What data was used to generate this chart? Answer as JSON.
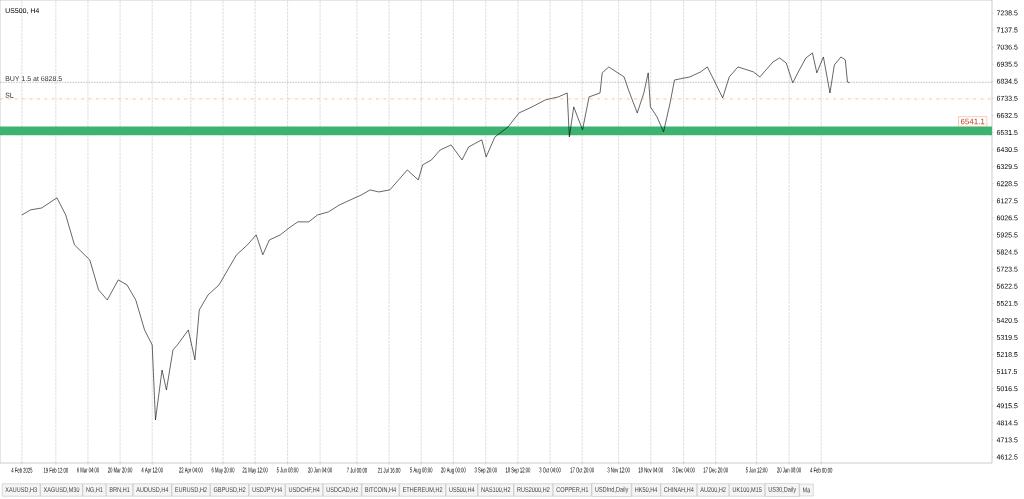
{
  "chart_data": {
    "type": "line",
    "title": "US500, H4",
    "x": [
      "2025-02-04",
      "2025-02-08",
      "2025-02-13",
      "2025-02-20",
      "2025-02-24",
      "2025-02-28",
      "2025-03-07",
      "2025-03-11",
      "2025-03-15",
      "2025-03-20",
      "2025-03-24",
      "2025-03-28",
      "2025-04-01",
      "2025-04-04T12:00",
      "2025-04-06",
      "2025-04-09",
      "2025-04-11",
      "2025-04-14",
      "2025-04-16",
      "2025-04-21",
      "2025-04-24",
      "2025-04-26",
      "2025-04-30",
      "2025-05-05",
      "2025-05-09",
      "2025-05-13",
      "2025-05-18",
      "2025-05-22",
      "2025-05-25",
      "2025-05-28",
      "2025-06-02",
      "2025-06-06",
      "2025-06-10",
      "2025-06-15",
      "2025-06-19",
      "2025-06-24",
      "2025-06-29",
      "2025-07-04",
      "2025-07-09",
      "2025-07-13",
      "2025-07-17",
      "2025-07-22",
      "2025-07-26",
      "2025-07-30",
      "2025-08-04",
      "2025-08-06",
      "2025-08-10",
      "2025-08-14",
      "2025-08-19",
      "2025-08-24",
      "2025-08-27",
      "2025-09-02",
      "2025-09-04",
      "2025-09-08",
      "2025-09-14",
      "2025-09-19",
      "2025-09-25",
      "2025-10-01",
      "2025-10-07",
      "2025-10-11",
      "2025-10-12",
      "2025-10-14",
      "2025-10-18",
      "2025-10-21",
      "2025-10-26",
      "2025-10-27",
      "2025-10-30",
      "2025-11-06",
      "2025-11-08",
      "2025-11-12",
      "2025-11-15",
      "2025-11-17",
      "2025-11-18",
      "2025-11-21",
      "2025-11-24",
      "2025-11-27",
      "2025-11-29",
      "2025-12-06",
      "2025-12-11",
      "2025-12-14",
      "2025-12-17",
      "2025-12-21",
      "2025-12-24",
      "2025-12-28",
      "2026-01-04",
      "2026-01-07",
      "2026-01-13",
      "2026-01-16",
      "2026-01-19",
      "2026-01-22",
      "2026-01-25",
      "2026-01-28",
      "2026-01-31",
      "2026-02-02",
      "2026-02-05",
      "2026-02-08",
      "2026-02-10",
      "2026-02-13",
      "2026-02-15",
      "2026-02-16",
      "2026-02-17"
    ],
    "series": [
      {
        "color": "#000000",
        "values": [
          6044,
          6074,
          6085,
          6145,
          6044,
          5867,
          5778,
          5601,
          5541,
          5660,
          5630,
          5541,
          5364,
          5275,
          4832,
          5127,
          5009,
          5246,
          5275,
          5364,
          5187,
          5482,
          5571,
          5630,
          5719,
          5808,
          5867,
          5926,
          5808,
          5896,
          5926,
          5967,
          6003,
          6003,
          6044,
          6062,
          6103,
          6133,
          6162,
          6192,
          6180,
          6192,
          6251,
          6310,
          6251,
          6340,
          6369,
          6428,
          6458,
          6369,
          6446,
          6488,
          6387,
          6505,
          6564,
          6647,
          6683,
          6724,
          6742,
          6765,
          6505,
          6683,
          6547,
          6742,
          6765,
          6884,
          6919,
          6860,
          6783,
          6647,
          6765,
          6884,
          6683,
          6624,
          6535,
          6706,
          6842,
          6860,
          6890,
          6919,
          6842,
          6736,
          6860,
          6919,
          6890,
          6860,
          6949,
          6972,
          6943,
          6825,
          6901,
          6972,
          7002,
          6884,
          6978,
          6765,
          6931,
          6978,
          6961,
          6830,
          6825
        ]
      }
    ],
    "xlim": [
      "2025-01-25",
      "2026-04-23"
    ],
    "xticks": [
      {
        "value": "2025-02-04T00:00",
        "label": "4 Feb 2025"
      },
      {
        "value": "2025-02-19T12:00",
        "label": "19 Feb 12:00"
      },
      {
        "value": "2025-03-06T04:00",
        "label": "6 Mar 04:00"
      },
      {
        "value": "2025-03-20T20:00",
        "label": "20 Mar 20:00"
      },
      {
        "value": "2025-04-04T12:00",
        "label": "4 Apr 12:00"
      },
      {
        "value": "2025-04-22T04:00",
        "label": "22 Apr 04:00"
      },
      {
        "value": "2025-05-06T20:00",
        "label": "6 May 20:00"
      },
      {
        "value": "2025-05-21T12:00",
        "label": "21 May 12:00"
      },
      {
        "value": "2025-06-05T08:00",
        "label": "5 Jun 08:00"
      },
      {
        "value": "2025-06-20T04:00",
        "label": "20 Jun 04:00"
      },
      {
        "value": "2025-07-07T00:00",
        "label": "7 Jul 00:00"
      },
      {
        "value": "2025-07-21T16:00",
        "label": "21 Jul 16:00"
      },
      {
        "value": "2025-08-05T08:00",
        "label": "5 Aug 08:00"
      },
      {
        "value": "2025-08-20T00:00",
        "label": "20 Aug 00:00"
      },
      {
        "value": "2025-09-03T20:00",
        "label": "3 Sep 20:00"
      },
      {
        "value": "2025-09-18T12:00",
        "label": "18 Sep 12:00"
      },
      {
        "value": "2025-10-03T04:00",
        "label": "3 Oct 04:00"
      },
      {
        "value": "2025-10-17T20:00",
        "label": "17 Oct 20:00"
      },
      {
        "value": "2025-11-03T12:00",
        "label": "3 Nov 12:00"
      },
      {
        "value": "2025-11-18T04:00",
        "label": "18 Nov 04:00"
      },
      {
        "value": "2025-12-03T04:00",
        "label": "3 Dec 04:00"
      },
      {
        "value": "2025-12-17T20:00",
        "label": "17 Dec 20:00"
      },
      {
        "value": "2026-01-05T12:00",
        "label": "5 Jan 12:00"
      },
      {
        "value": "2026-01-20T08:00",
        "label": "20 Jan 08:00"
      },
      {
        "value": "2026-02-04T00:00",
        "label": "4 Feb 00:00"
      }
    ],
    "ylim": [
      4577,
      7315
    ],
    "yticks": [
      4612.5,
      4713.5,
      4814.5,
      4915.5,
      5016.5,
      5117.5,
      5218.5,
      5319.5,
      5420.5,
      5521.5,
      5622.5,
      5723.5,
      5824.5,
      5925.5,
      6026.5,
      6127.5,
      6228.5,
      6329.5,
      6430.5,
      6531.5,
      6632.5,
      6733.5,
      6834.5,
      6935.5,
      7036.5,
      7137.5,
      7238.5
    ],
    "grid": "x",
    "ref_lines": [
      {
        "axis": "y",
        "value": 6828.5,
        "label": "BUY 1.5 at 6828.5",
        "color": "#555555",
        "line_style": "dotted"
      },
      {
        "axis": "y",
        "value": 6730,
        "label": "SL",
        "color": "#f0a070",
        "line_style": "dashed"
      }
    ],
    "bands": [
      {
        "axis": "y",
        "from": 6515,
        "to": 6567,
        "label": "6541.1",
        "color": "#3cb371"
      }
    ],
    "annotations": [
      "XAUUSD,H3",
      "XAGUSD,M30",
      "NG,H1",
      "BRN,H1",
      "AUDUSD,H4",
      "EURUSD,H2",
      "GBPUSD,H2",
      "USDJPY,H4",
      "USDCHF,H4",
      "USDCAD,H2",
      "BITCOIN,H4",
      "ETHEREUM,H2",
      "US500,H4",
      "NAS100,H2",
      "RUS2000,H2",
      "COPPER,H1",
      "USDInd,Daily",
      "HK50,H4",
      "CHINAH,H4",
      "AU200,H2",
      "UK100,M15",
      "US30,Daily",
      "Ma"
    ]
  }
}
